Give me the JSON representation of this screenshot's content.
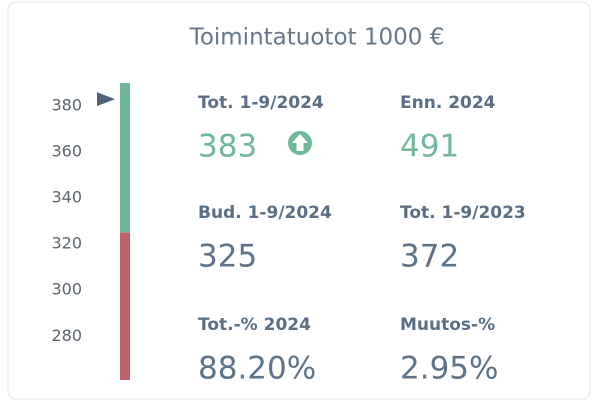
{
  "title": "Toimintatuotot 1000 €",
  "gauge": {
    "ylim": [
      261,
      390
    ],
    "ticks": [
      380,
      360,
      340,
      320,
      300,
      280
    ]
  },
  "metrics": [
    {
      "label": "Tot. 1-9/2024",
      "value": 383
    },
    {
      "label": "Enn. 2024",
      "value": 491
    },
    {
      "label": "Bud. 1-9/2024",
      "value": 325
    },
    {
      "label": "Tot. 1-9/2023",
      "value": 372
    },
    {
      "label": "Tot.-% 2024",
      "value": "88.20%"
    },
    {
      "label": "Muutos-%",
      "value": "2.95%"
    }
  ]
}
